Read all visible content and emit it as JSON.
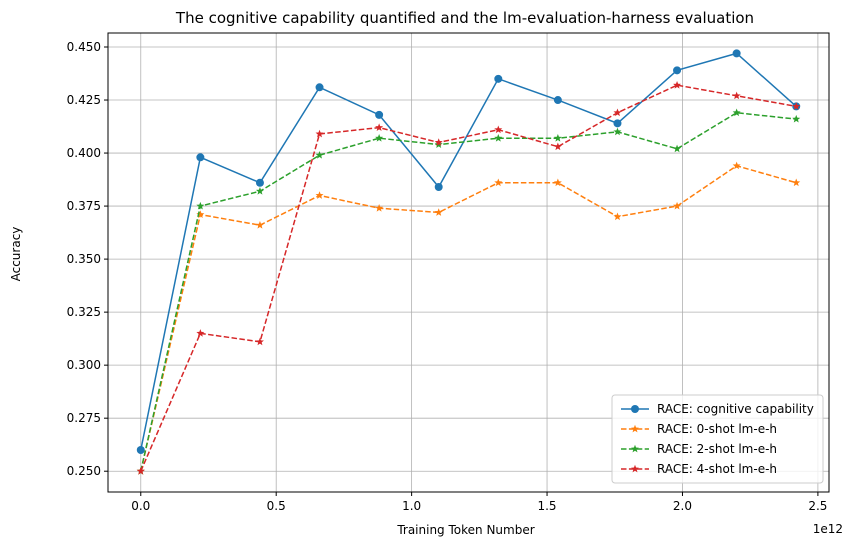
{
  "chart_data": {
    "type": "line",
    "title": "The cognitive capability quantified and the lm-evaluation-harness evaluation",
    "xlabel": "Training Token Number",
    "ylabel": "Accuracy",
    "x_offset_label": "1e12",
    "xlim": [
      -121000000000.0,
      2541000000000.0
    ],
    "ylim": [
      0.2402,
      0.4566
    ],
    "x_ticks": [
      0,
      500000000000.0,
      1000000000000.0,
      1500000000000.0,
      2000000000000.0,
      2500000000000.0
    ],
    "x_tick_labels": [
      "0.0",
      "0.5",
      "1.0",
      "1.5",
      "2.0",
      "2.5"
    ],
    "y_ticks": [
      0.25,
      0.275,
      0.3,
      0.325,
      0.35,
      0.375,
      0.4,
      0.425,
      0.45
    ],
    "y_tick_labels": [
      "0.250",
      "0.275",
      "0.300",
      "0.325",
      "0.350",
      "0.375",
      "0.400",
      "0.425",
      "0.450"
    ],
    "grid": true,
    "legend_position": "lower-right",
    "x": [
      0,
      220000000000.0,
      440000000000.0,
      660000000000.0,
      880000000000.0,
      1100000000000.0,
      1320000000000.0,
      1540000000000.0,
      1760000000000.0,
      1980000000000.0,
      2200000000000.0,
      2420000000000.0
    ],
    "series": [
      {
        "name": "RACE: cognitive capability",
        "color": "#1f77b4",
        "dash": "solid",
        "marker": "circle",
        "values": [
          0.26,
          0.398,
          0.386,
          0.431,
          0.418,
          0.384,
          0.435,
          0.425,
          0.414,
          0.439,
          0.447,
          0.422
        ]
      },
      {
        "name": "RACE: 0-shot lm-e-h",
        "color": "#ff7f0e",
        "dash": "dashed",
        "marker": "star",
        "values": [
          0.25,
          0.371,
          0.366,
          0.38,
          0.374,
          0.372,
          0.386,
          0.386,
          0.37,
          0.375,
          0.394,
          0.386
        ]
      },
      {
        "name": "RACE: 2-shot lm-e-h",
        "color": "#2ca02c",
        "dash": "dashed",
        "marker": "star",
        "values": [
          0.25,
          0.375,
          0.382,
          0.399,
          0.407,
          0.404,
          0.407,
          0.407,
          0.41,
          0.402,
          0.419,
          0.416
        ]
      },
      {
        "name": "RACE: 4-shot lm-e-h",
        "color": "#d62728",
        "dash": "dashed",
        "marker": "star",
        "values": [
          0.25,
          0.315,
          0.311,
          0.409,
          0.412,
          0.405,
          0.411,
          0.403,
          0.419,
          0.432,
          0.427,
          0.422
        ]
      }
    ]
  }
}
